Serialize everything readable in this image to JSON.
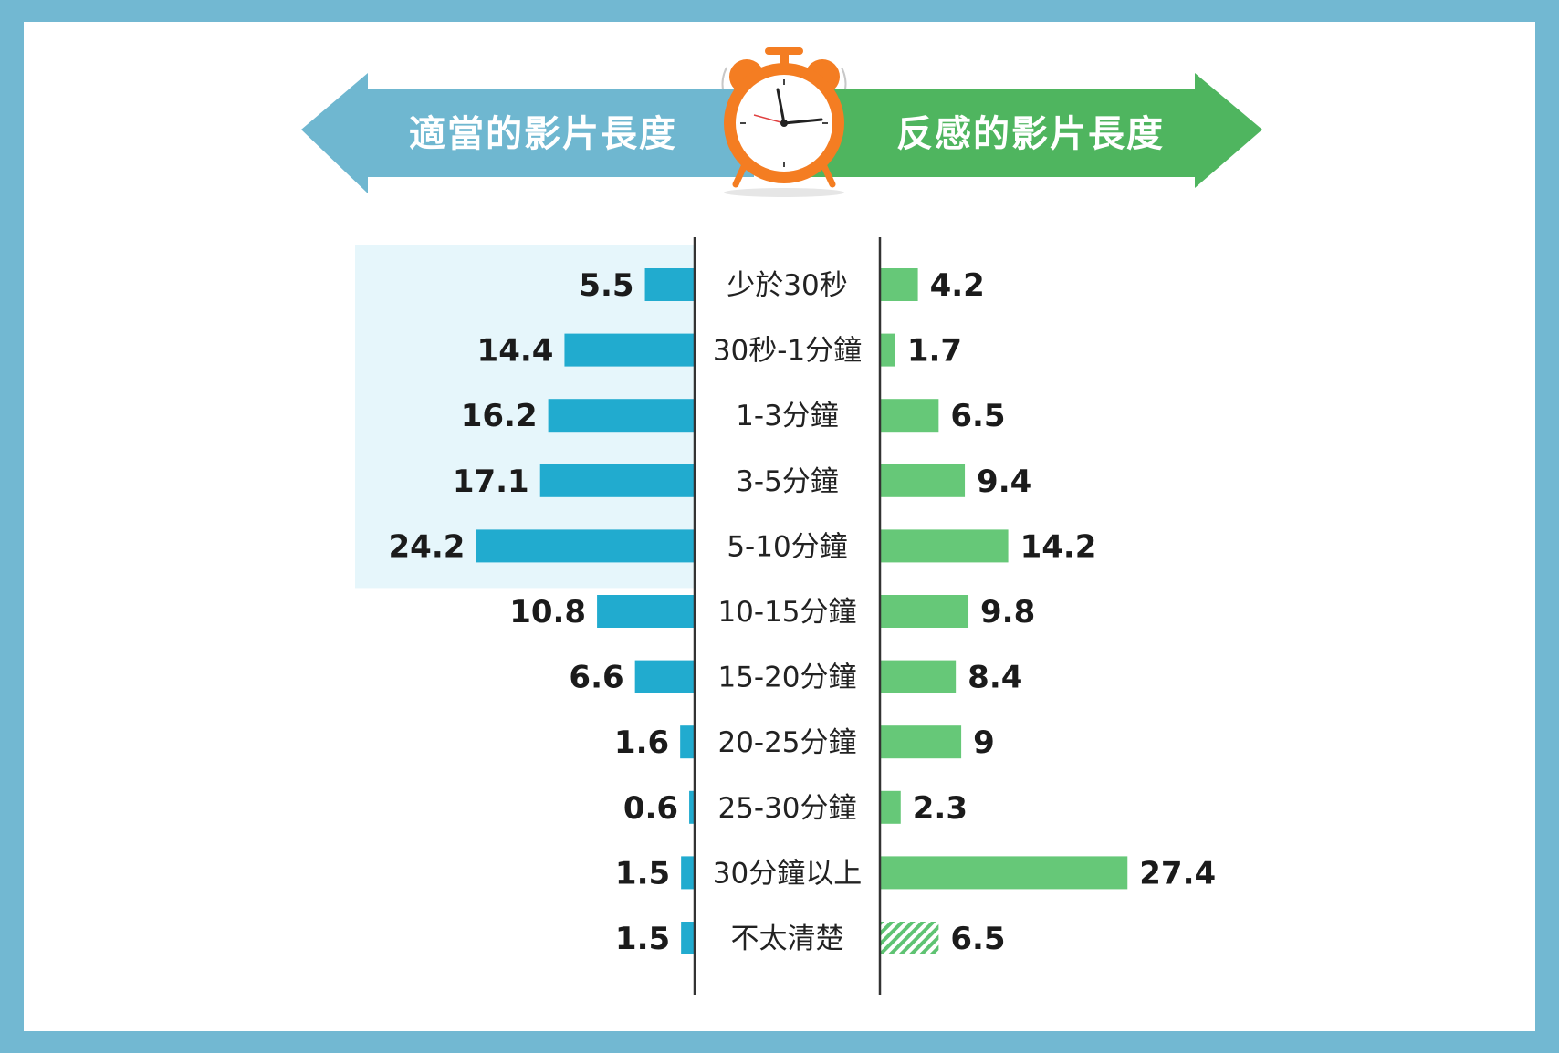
{
  "header": {
    "left_label": "適當的影片長度",
    "right_label": "反感的影片長度"
  },
  "colors": {
    "frame": "#72b8d2",
    "left_arrow": "#6fb7d0",
    "right_arrow": "#4fb55f",
    "left_bar": "#21abcf",
    "right_bar": "#66c878",
    "highlight_band": "#e6f6fb",
    "clock_orange": "#f47d22"
  },
  "chart_data": {
    "type": "bar",
    "layout": "back-to-back horizontal",
    "categories": [
      "少於30秒",
      "30秒-1分鐘",
      "1-3分鐘",
      "3-5分鐘",
      "5-10分鐘",
      "10-15分鐘",
      "15-20分鐘",
      "20-25分鐘",
      "25-30分鐘",
      "30分鐘以上",
      "不太清楚"
    ],
    "series": [
      {
        "name": "適當的影片長度",
        "side": "left",
        "values": [
          5.5,
          14.4,
          16.2,
          17.1,
          24.2,
          10.8,
          6.6,
          1.6,
          0.6,
          1.5,
          1.5
        ],
        "labels": [
          "5.5",
          "14.4",
          "16.2",
          "17.1",
          "24.2",
          "10.8",
          "6.6",
          "1.6",
          "0.6",
          "1.5",
          "1.5"
        ]
      },
      {
        "name": "反感的影片長度",
        "side": "right",
        "values": [
          4.2,
          1.7,
          6.5,
          9.4,
          14.2,
          9.8,
          8.4,
          9,
          2.3,
          27.4,
          6.5
        ],
        "labels": [
          "4.2",
          "1.7",
          "6.5",
          "9.4",
          "14.2",
          "9.8",
          "8.4",
          "9",
          "2.3",
          "27.4",
          "6.5"
        ]
      }
    ],
    "highlighted_categories": [
      "少於30秒",
      "30秒-1分鐘",
      "1-3分鐘",
      "3-5分鐘",
      "5-10分鐘"
    ],
    "hatched": {
      "series": "反感的影片長度",
      "category": "不太清楚"
    },
    "xlim": [
      0,
      27.4
    ],
    "grid": false
  }
}
